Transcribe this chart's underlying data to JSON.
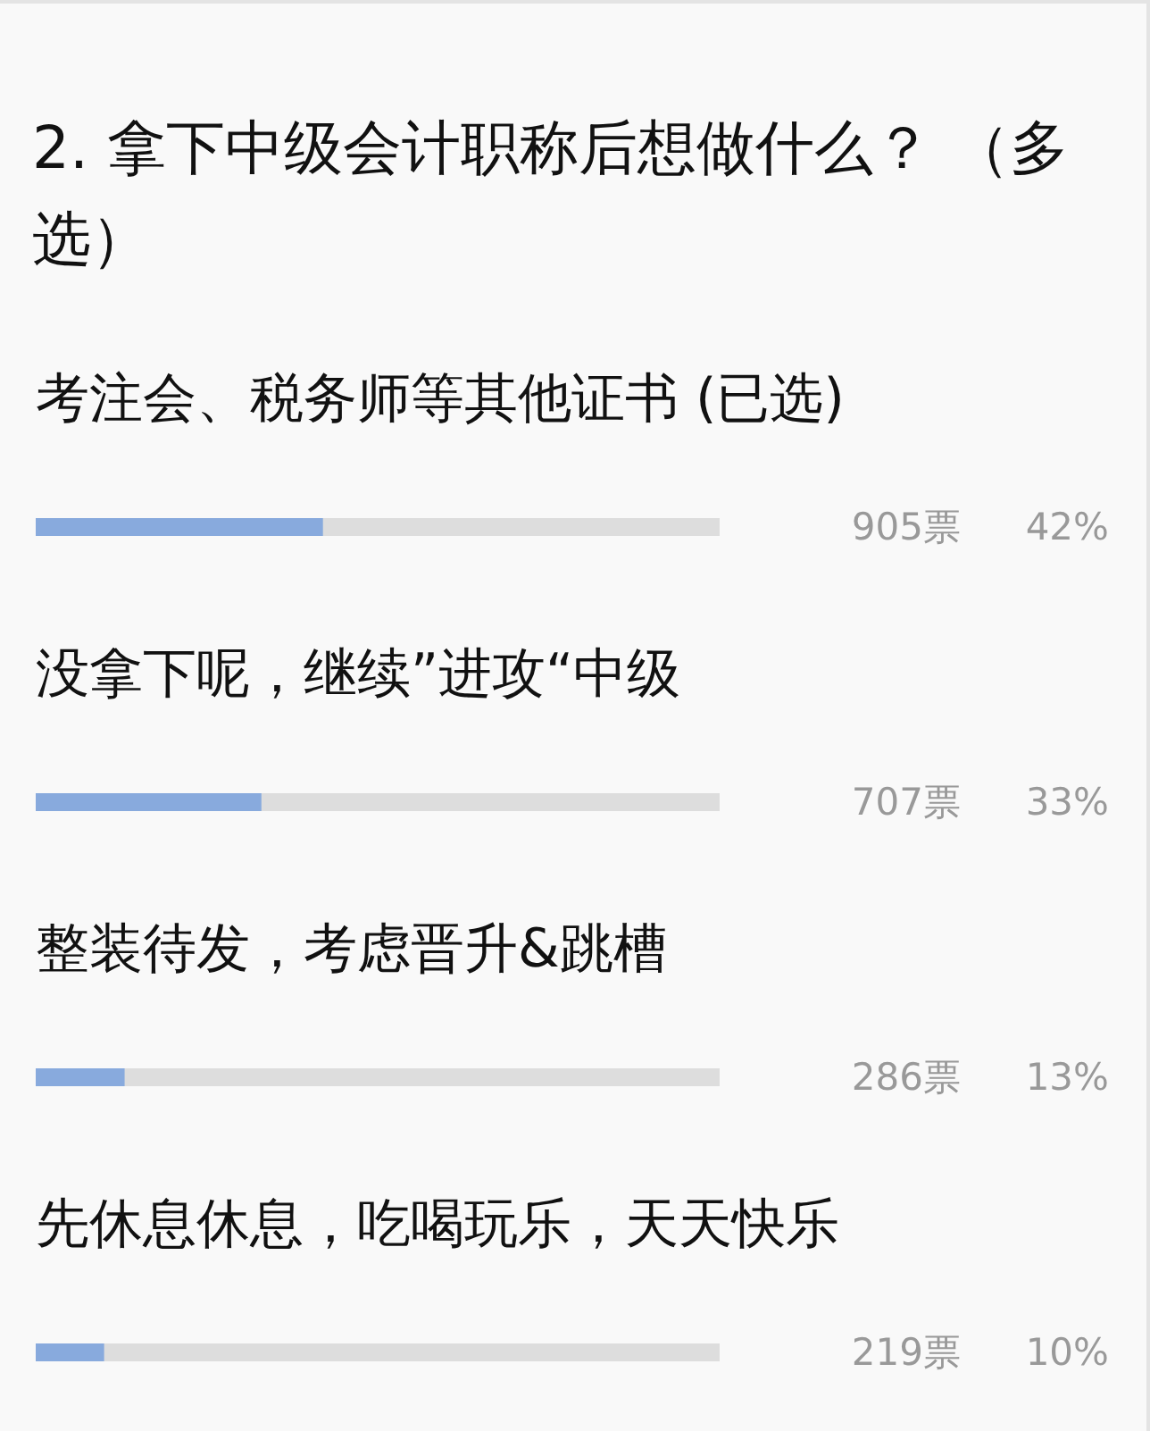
{
  "chart_data": {
    "type": "bar",
    "orientation": "horizontal",
    "title": "2. 拿下中级会计职称后想做什么？ （多选）",
    "categories": [
      "考注会、税务师等其他证书 (已选)",
      "没拿下呢，继续”进攻“中级",
      "整装待发，考虑晋升&跳槽",
      "先休息休息，吃喝玩乐，天天快乐"
    ],
    "values": [
      42,
      33,
      13,
      10
    ],
    "color": "#88aadd",
    "xlim": [
      0,
      100
    ],
    "tick_labels": "y",
    "value_labels": [
      "42%",
      "33%",
      "13%",
      "10%"
    ],
    "annotations": [
      "905票",
      "707票",
      "286票",
      "219票"
    ]
  }
}
